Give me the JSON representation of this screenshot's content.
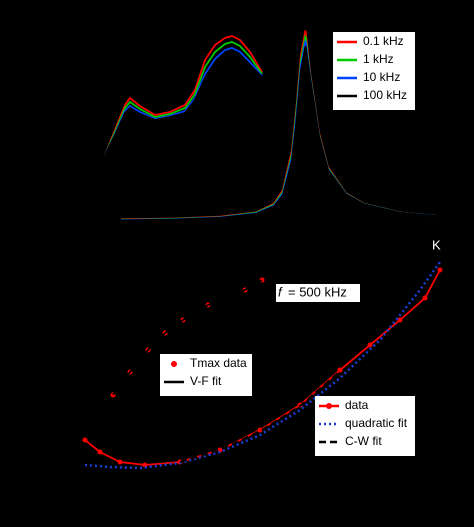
{
  "chart_data": [
    {
      "type": "line",
      "xlim": [
        50,
        450
      ],
      "ylim": [
        0,
        12000
      ],
      "x": [
        90,
        150,
        200,
        240,
        260,
        270,
        280,
        285,
        290,
        295,
        300,
        310,
        320,
        340,
        360,
        400,
        440
      ],
      "series": [
        {
          "name": "0.1 kHz",
          "color": "#ff0000",
          "values": [
            500,
            550,
            650,
            900,
            1400,
            2200,
            4500,
            7000,
            10000,
            11400,
            9000,
            5500,
            3500,
            2000,
            1400,
            900,
            700
          ]
        },
        {
          "name": "1 kHz",
          "color": "#00cc00",
          "values": [
            480,
            530,
            630,
            880,
            1350,
            2100,
            4300,
            6800,
            9700,
            11100,
            8900,
            5400,
            3450,
            1980,
            1390,
            895,
            698
          ]
        },
        {
          "name": "10 kHz",
          "color": "#0044ff",
          "values": [
            460,
            510,
            610,
            850,
            1300,
            2000,
            4100,
            6500,
            9400,
            10800,
            8800,
            5350,
            3400,
            1960,
            1380,
            890,
            696
          ]
        },
        {
          "name": "100 kHz",
          "color": "#000000",
          "values": [
            440,
            490,
            590,
            820,
            1250,
            1900,
            3900,
            6200,
            9100,
            10500,
            8700,
            5300,
            3350,
            1940,
            1370,
            885,
            694
          ]
        }
      ]
    },
    {
      "type": "line",
      "xlim": [
        95,
        270
      ],
      "ylim": [
        0,
        150
      ],
      "x": [
        105,
        115,
        125,
        130,
        140,
        155,
        170,
        185,
        195,
        205,
        215,
        225,
        232,
        240,
        250,
        262
      ],
      "series": [
        {
          "color": "#ff0000",
          "values": [
            20,
            45,
            70,
            77,
            69,
            60,
            63,
            70,
            85,
            115,
            130,
            137,
            139,
            135,
            123,
            103
          ]
        },
        {
          "color": "#00cc00",
          "values": [
            20,
            43,
            67,
            73,
            66,
            58,
            61,
            67,
            81,
            108,
            123,
            131,
            133,
            129,
            118,
            101
          ]
        },
        {
          "color": "#0044ff",
          "values": [
            20,
            41,
            64,
            69,
            63,
            56,
            59,
            64,
            77,
            101,
            116,
            125,
            127,
            123,
            113,
            99
          ]
        },
        {
          "color": "#000000",
          "values": [
            20,
            40,
            62,
            67,
            61,
            55,
            58,
            62,
            75,
            97,
            112,
            121,
            123,
            119,
            110,
            98
          ]
        }
      ]
    },
    {
      "type": "line",
      "xlim": [
        85,
        445
      ],
      "ylim": [
        0,
        24
      ],
      "unit_label": "K",
      "series": [
        {
          "name": "data",
          "color": "#ff0000",
          "marker": true,
          "x": [
            85,
            100,
            120,
            145,
            180,
            220,
            260,
            300,
            340,
            370,
            400,
            425,
            440
          ],
          "values": [
            5.5,
            4.3,
            3.3,
            3.0,
            3.3,
            4.5,
            6.5,
            9.0,
            12.5,
            15.0,
            17.5,
            19.7,
            22.5
          ]
        },
        {
          "name": "quadratic fit",
          "color": "#1a3fd6",
          "dash": "dotted",
          "x": [
            85,
            110,
            140,
            180,
            220,
            260,
            300,
            340,
            380,
            420,
            440
          ],
          "values": [
            3.0,
            2.8,
            2.7,
            3.2,
            4.3,
            6.0,
            8.5,
            11.7,
            15.5,
            20.5,
            23.3
          ]
        },
        {
          "name": "C-W fit",
          "color": "#000000",
          "dash": "dashed",
          "x": [
            180,
            220,
            260,
            300,
            340
          ],
          "values": [
            3.3,
            4.5,
            6.4,
            8.9,
            12.4
          ]
        }
      ]
    },
    {
      "type": "scatter",
      "xlim": [
        95,
        270
      ],
      "ylim": [
        0,
        140
      ],
      "annotation_symbol": "f",
      "annotation": "= 500 kHz",
      "series": [
        {
          "name": "Tmax data",
          "color": "#ff0000",
          "marker": true,
          "markers_only": true,
          "x": [
            113,
            130,
            148,
            165,
            183,
            208,
            245,
            262
          ],
          "values": [
            15,
            38,
            60,
            77,
            90,
            105,
            120,
            130
          ]
        },
        {
          "name": "V-F fit",
          "color": "#000000",
          "x": [
            113,
            130,
            148,
            165,
            183,
            208,
            245,
            262
          ],
          "values": [
            15,
            38,
            60,
            77,
            90,
            105,
            120,
            130
          ]
        }
      ]
    }
  ]
}
